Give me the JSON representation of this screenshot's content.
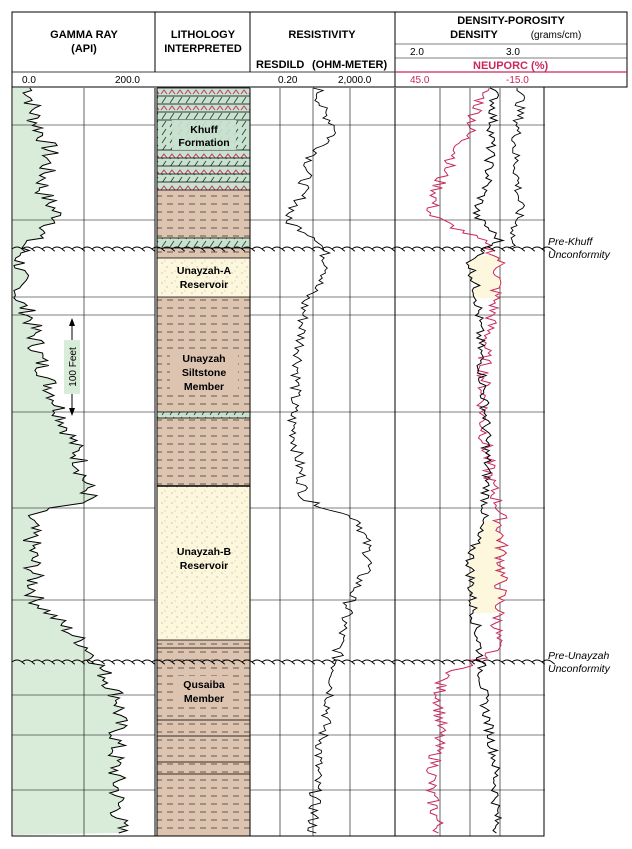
{
  "tracks": {
    "gamma": {
      "title_line1": "GAMMA RAY",
      "title_line2": "(API)",
      "scale_min": "0.0",
      "scale_max": "200.0"
    },
    "lithology": {
      "title_line1": "LITHOLOGY",
      "title_line2": "INTERPRETED"
    },
    "resistivity": {
      "title": "RESISTIVITY",
      "curve": "RESDILD",
      "unit": "(OHM-METER)",
      "scale_min": "0.20",
      "scale_max": "2,000.0"
    },
    "density": {
      "title_line1": "DENSITY-POROSITY",
      "title_line2": "DENSITY",
      "density_unit": "(grams/cm)",
      "density_min": "2.0",
      "density_max": "3.0",
      "neutron_label": "NEUPORC  (%)",
      "neutron_min": "45.0",
      "neutron_max": "-15.0"
    }
  },
  "units": {
    "khuff": [
      "Khuff",
      "Formation"
    ],
    "unayzah_a": [
      "Unayzah-A",
      "Reservoir"
    ],
    "siltstone": [
      "Unayzah",
      "Siltstone",
      "Member"
    ],
    "unayzah_b": [
      "Unayzah-B",
      "Reservoir"
    ],
    "qusaiba": [
      "Qusaiba",
      "Member"
    ]
  },
  "unconformities": {
    "pre_khuff": [
      "Pre-Khuff",
      "Unconformity"
    ],
    "pre_unayzah": [
      "Pre-Unayzah",
      "Unconformity"
    ]
  },
  "scale_bar": "100 Feet",
  "colors": {
    "gamma_fill": "#d8ecd9",
    "shale": "#dcc4b1",
    "sand": "#fdf7dd",
    "carbonate": "#c9e2cf",
    "neutron": "#c8285a",
    "curve": "#000000"
  }
}
